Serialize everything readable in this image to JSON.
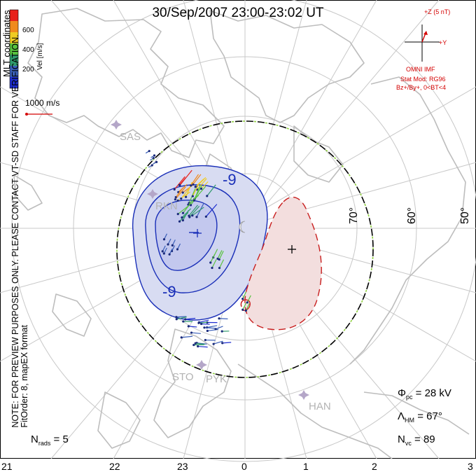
{
  "title": "30/Sep/2007 23:00-23:02 UT",
  "side_note": {
    "line1": "NOTE: FOR PREVIEW PURPOSES ONLY. PLEASE CONTACT VT-SD STAFF FOR VERIFICATION.",
    "line2": "FitOrder: 8, mapEX format"
  },
  "coord_label": "MLT coordinates",
  "velocity_scale": {
    "axis_label": "Vel [m/s]",
    "ticks": [
      "600",
      "400",
      "200"
    ],
    "colors": [
      "#e8201a",
      "#f08a1c",
      "#f0cc22",
      "#58c23e",
      "#2f9a6c",
      "#3a5fb8",
      "#1e2ed0"
    ]
  },
  "reference_vector": "1000 m/s",
  "imf": {
    "z_label": "+Z (5 nT)",
    "y_label": "+Y",
    "source": "OMNI IMF",
    "model": "Stat Mod: RG96",
    "condition": "Bz+/By+, 0<BT<4"
  },
  "contours": {
    "negative_label_top": "-9",
    "negative_label_bottom": "-9"
  },
  "latitude_labels": [
    "70°",
    "60°",
    "50°"
  ],
  "mlt_labels": [
    "21",
    "22",
    "23",
    "0",
    "1",
    "2",
    "3"
  ],
  "stations": [
    "SAS",
    "RKN",
    "STO",
    "PYK",
    "HAN"
  ],
  "stats": {
    "phi_label": "Φ",
    "phi_sub": "pc",
    "phi_value": "= 28 kV",
    "lambda_label": "Λ",
    "lambda_sub": "HM",
    "lambda_value": "= 67°",
    "nvc_label": "N",
    "nvc_sub": "vc",
    "nvc_value": "= 89",
    "nrads_label": "N",
    "nrads_sub": "rads",
    "nrads_value": "= 5"
  },
  "colors": {
    "negative_cell_fill": "#d8dcf2",
    "negative_core_fill": "#c6cbee",
    "negative_contour": "#1a2fb8",
    "positive_cell_fill": "#f3dede",
    "positive_contour": "#c81e1e",
    "hm_boundary": "#000000",
    "grid": "#c8c8c8",
    "coastline": "#bdbdbd",
    "imf_text": "#d40000"
  }
}
